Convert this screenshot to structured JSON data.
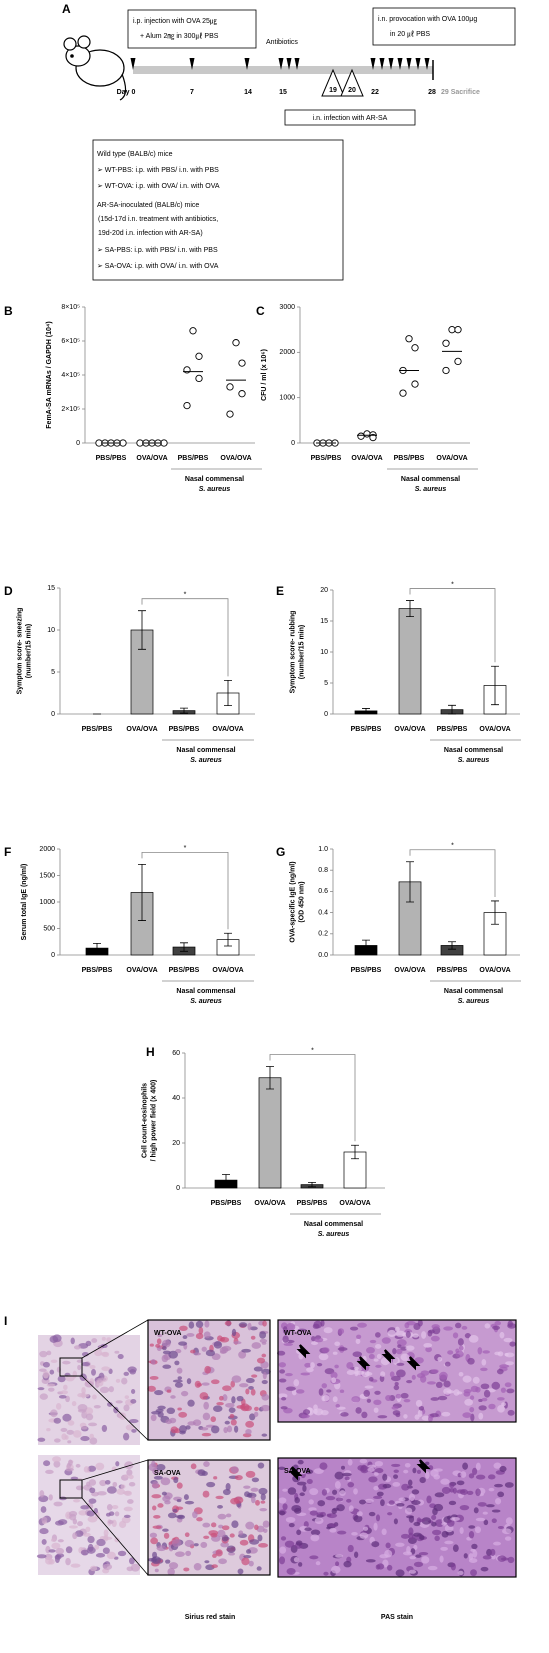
{
  "timeline": {
    "letter": "A",
    "box1": [
      "i.p. injection with OVA 25㎍",
      "+ Alum 2㎎ in 300㎕ PBS"
    ],
    "antibiotics": "Antibiotics",
    "box2": [
      "i.n. provocation with OVA 100μg",
      "in 20 ㎕ PBS"
    ],
    "days": [
      "Day 0",
      "7",
      "14",
      "15",
      "19",
      "20",
      "22",
      "28",
      "29 Sacrifice"
    ],
    "infection": "i.n. infection with AR-SA",
    "legend": [
      "Wild type (BALB/c) mice",
      "➢ WT-PBS: i.p. with PBS/ i.n. with PBS",
      "➢ WT-OVA: i.p. with OVA/ i.n. with OVA",
      "AR-SA-inoculated (BALB/c) mice",
      "(15d-17d i.n. treatment with antibiotics,",
      "19d-20d i.n. infection with AR-SA)",
      "➢ SA-PBS: i.p. with PBS/ i.n. with PBS",
      "➢ SA-OVA: i.p. with OVA/ i.n. with OVA"
    ]
  },
  "chart_data": [
    {
      "type": "dot",
      "panel": "B",
      "ylabel": [
        "FemA-SA mRNAs / GAPDH (10⁴)"
      ],
      "categories": [
        "PBS/PBS",
        "OVA/OVA",
        "PBS/PBS",
        "OVA/OVA"
      ],
      "group_label": [
        "Nasal commensal",
        "S. aureus"
      ],
      "points": [
        [
          0,
          0,
          0,
          0,
          0
        ],
        [
          0,
          0,
          0,
          0,
          0
        ],
        [
          660000,
          510000,
          430000,
          380000,
          220000
        ],
        [
          590000,
          470000,
          330000,
          290000,
          170000
        ]
      ],
      "means": [
        0,
        0,
        420000,
        370000
      ],
      "ylim": [
        0,
        800000
      ],
      "yticks": [
        0,
        {
          "value": 200000,
          "label": "2×10⁵"
        },
        {
          "value": 400000,
          "label": "4×10⁵"
        },
        {
          "value": 600000,
          "label": "6×10⁵"
        },
        {
          "value": 800000,
          "label": "8×10⁵"
        }
      ]
    },
    {
      "type": "dot",
      "panel": "C",
      "ylabel": [
        "CFU / ml (x 10⁶)"
      ],
      "categories": [
        "PBS/PBS",
        "OVA/OVA",
        "PBS/PBS",
        "OVA/OVA"
      ],
      "group_label": [
        "Nasal commensal",
        "S. aureus"
      ],
      "points": [
        [
          0,
          0,
          0,
          0
        ],
        [
          200,
          180,
          150,
          120
        ],
        [
          2300,
          2100,
          1600,
          1300,
          1100
        ],
        [
          2500,
          2500,
          2200,
          1800,
          1600
        ]
      ],
      "means": [
        0,
        170,
        1600,
        2020
      ],
      "ylim": [
        0,
        3000
      ],
      "yticks": [
        0,
        1000,
        2000,
        3000
      ]
    },
    {
      "type": "bar",
      "panel": "D",
      "ylabel": [
        "Symptom score- sneezing",
        "(number/15 min)"
      ],
      "categories": [
        "PBS/PBS",
        "OVA/OVA",
        "PBS/PBS",
        "OVA/OVA"
      ],
      "group_label": [
        "Nasal commensal",
        "S. aureus"
      ],
      "values": [
        0,
        10,
        0.4,
        2.5
      ],
      "errors": [
        0,
        2.3,
        0.3,
        1.5
      ],
      "colors": [
        "#000000",
        "#b3b3b3",
        "#404040",
        "#ffffff"
      ],
      "significance": "*",
      "ylim": [
        0,
        15
      ],
      "yticks": [
        0,
        5,
        10,
        15
      ]
    },
    {
      "type": "bar",
      "panel": "E",
      "ylabel": [
        "Symptom score- rubbing",
        "(number/15 min)"
      ],
      "categories": [
        "PBS/PBS",
        "OVA/OVA",
        "PBS/PBS",
        "OVA/OVA"
      ],
      "group_label": [
        "Nasal commensal",
        "S. aureus"
      ],
      "values": [
        0.5,
        17,
        0.7,
        4.6
      ],
      "errors": [
        0.4,
        1.3,
        0.7,
        3.1
      ],
      "colors": [
        "#000000",
        "#b3b3b3",
        "#404040",
        "#ffffff"
      ],
      "significance": "*",
      "ylim": [
        0,
        20
      ],
      "yticks": [
        0,
        5,
        10,
        15,
        20
      ]
    },
    {
      "type": "bar",
      "panel": "F",
      "ylabel": [
        "Serum total IgE (ng/ml)"
      ],
      "categories": [
        "PBS/PBS",
        "OVA/OVA",
        "PBS/PBS",
        "OVA/OVA"
      ],
      "group_label": [
        "Nasal commensal",
        "S. aureus"
      ],
      "values": [
        130,
        1180,
        150,
        290
      ],
      "errors": [
        90,
        530,
        80,
        120
      ],
      "colors": [
        "#000000",
        "#b3b3b3",
        "#404040",
        "#ffffff"
      ],
      "significance": "*",
      "ylim": [
        0,
        2000
      ],
      "yticks": [
        0,
        500,
        1000,
        1500,
        2000
      ]
    },
    {
      "type": "bar",
      "panel": "G",
      "ylabel": [
        "OVA-specific IgE (ng/ml)",
        "(OD 450 nm)"
      ],
      "categories": [
        "PBS/PBS",
        "OVA/OVA",
        "PBS/PBS",
        "OVA/OVA"
      ],
      "group_label": [
        "Nasal commensal",
        "S. aureus"
      ],
      "values": [
        0.09,
        0.69,
        0.09,
        0.4
      ],
      "errors": [
        0.05,
        0.19,
        0.035,
        0.11
      ],
      "colors": [
        "#000000",
        "#b3b3b3",
        "#404040",
        "#ffffff"
      ],
      "significance": "*",
      "ylim": [
        0,
        1
      ],
      "yticks": [
        {
          "value": 0,
          "label": "0.0"
        },
        0.2,
        0.4,
        0.6,
        0.8,
        {
          "value": 1,
          "label": "1.0"
        }
      ]
    },
    {
      "type": "bar",
      "panel": "H",
      "ylabel": [
        "Cell count-eosinophils",
        "/ high power field (x 400)"
      ],
      "categories": [
        "PBS/PBS",
        "OVA/OVA",
        "PBS/PBS",
        "OVA/OVA"
      ],
      "group_label": [
        "Nasal commensal",
        "S. aureus"
      ],
      "values": [
        3.5,
        49,
        1.5,
        16
      ],
      "errors": [
        2.5,
        5,
        1,
        3
      ],
      "colors": [
        "#000000",
        "#b3b3b3",
        "#404040",
        "#ffffff"
      ],
      "significance": "*",
      "ylim": [
        0,
        60
      ],
      "yticks": [
        0,
        20,
        40,
        60
      ]
    }
  ],
  "histology": {
    "letter": "I",
    "labels": [
      "WT-OVA",
      "WT-OVA",
      "SA-OVA",
      "SA-OVA"
    ],
    "captions": [
      "Sirius red stain",
      "PAS stain"
    ]
  }
}
